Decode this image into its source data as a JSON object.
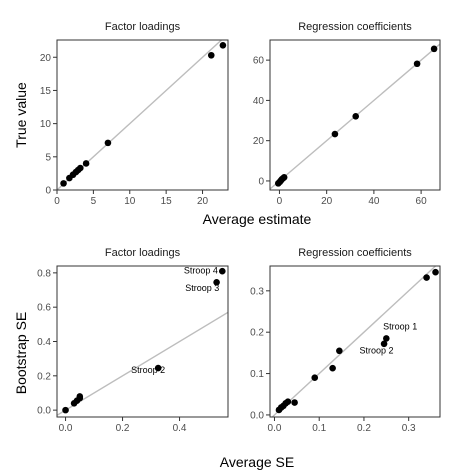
{
  "colors": {
    "points": "#000000",
    "reference_line": "#bdbdbd",
    "frame": "#333333"
  },
  "figure": {
    "top_xlabel": "Average estimate",
    "top_ylabel": "True value",
    "bottom_xlabel": "Average SE",
    "bottom_ylabel": "Bootstrap SE"
  },
  "chart_data": [
    {
      "type": "scatter",
      "title": "Factor loadings",
      "xlim": [
        0,
        23.5
      ],
      "ylim": [
        0,
        22.6
      ],
      "xticks": [
        0,
        5,
        10,
        15,
        20
      ],
      "yticks": [
        0,
        5,
        10,
        15,
        20
      ],
      "reference_line": "y = x",
      "x": [
        0.9,
        1.7,
        2.2,
        2.6,
        2.9,
        3.2,
        4.0,
        7.0,
        21.2,
        22.8
      ],
      "y": [
        1.0,
        1.8,
        2.3,
        2.7,
        3.0,
        3.3,
        4.0,
        7.1,
        20.3,
        21.8
      ],
      "annotations": []
    },
    {
      "type": "scatter",
      "title": "Regression coefficients",
      "xlim": [
        -4,
        68
      ],
      "ylim": [
        -4.5,
        70
      ],
      "xticks": [
        0,
        20,
        40,
        60
      ],
      "yticks": [
        0,
        20,
        40,
        60
      ],
      "reference_line": "y = x",
      "x": [
        -0.5,
        0.2,
        0.6,
        1.0,
        1.5,
        2.0,
        23.5,
        32.3,
        58.3,
        65.5
      ],
      "y": [
        -1.2,
        -0.4,
        0.2,
        0.8,
        1.3,
        1.8,
        23.3,
        32.1,
        58.2,
        65.6
      ],
      "annotations": []
    },
    {
      "type": "scatter",
      "title": "Factor loadings",
      "xlim": [
        -0.03,
        0.57
      ],
      "ylim": [
        -0.04,
        0.84
      ],
      "xticks": [
        0.0,
        0.2,
        0.4
      ],
      "xtick_labels": [
        "0.0",
        "0.2",
        "0.4"
      ],
      "yticks": [
        0.0,
        0.2,
        0.4,
        0.6,
        0.8
      ],
      "ytick_labels": [
        "0.0",
        "0.2",
        "0.4",
        "0.6",
        "0.8"
      ],
      "reference_line": "y = x",
      "x": [
        0.0,
        0.03,
        0.04,
        0.05,
        0.05,
        0.325,
        0.53,
        0.55
      ],
      "y": [
        0.0,
        0.04,
        0.055,
        0.07,
        0.08,
        0.245,
        0.745,
        0.81
      ],
      "annotations": [
        {
          "text": "Stroop 4",
          "x": 0.55,
          "y": 0.81,
          "text_x": 0.415,
          "text_y": 0.795,
          "leader": true
        },
        {
          "text": "Stroop 3",
          "x": 0.53,
          "y": 0.745,
          "text_x": 0.42,
          "text_y": 0.695,
          "leader": false
        },
        {
          "text": "Stroop 2",
          "x": 0.325,
          "y": 0.245,
          "text_x": 0.23,
          "text_y": 0.215,
          "leader": false
        }
      ]
    },
    {
      "type": "scatter",
      "title": "Regression coefficients",
      "xlim": [
        -0.01,
        0.37
      ],
      "ylim": [
        -0.005,
        0.36
      ],
      "xticks": [
        0.0,
        0.1,
        0.2,
        0.3
      ],
      "xtick_labels": [
        "0.0",
        "0.1",
        "0.2",
        "0.3"
      ],
      "yticks": [
        0.0,
        0.1,
        0.2,
        0.3
      ],
      "ytick_labels": [
        "0.0",
        "0.1",
        "0.2",
        "0.3"
      ],
      "reference_line": "y = x",
      "x": [
        0.01,
        0.015,
        0.02,
        0.025,
        0.03,
        0.045,
        0.09,
        0.13,
        0.145,
        0.245,
        0.25,
        0.34,
        0.36
      ],
      "y": [
        0.012,
        0.018,
        0.022,
        0.028,
        0.032,
        0.03,
        0.09,
        0.113,
        0.155,
        0.172,
        0.185,
        0.332,
        0.345
      ],
      "annotations": [
        {
          "text": "Stroop 1",
          "x": 0.25,
          "y": 0.185,
          "text_x": 0.243,
          "text_y": 0.207,
          "leader": false
        },
        {
          "text": "Stroop 2",
          "x": 0.245,
          "y": 0.172,
          "text_x": 0.19,
          "text_y": 0.148,
          "leader": false
        }
      ]
    }
  ]
}
